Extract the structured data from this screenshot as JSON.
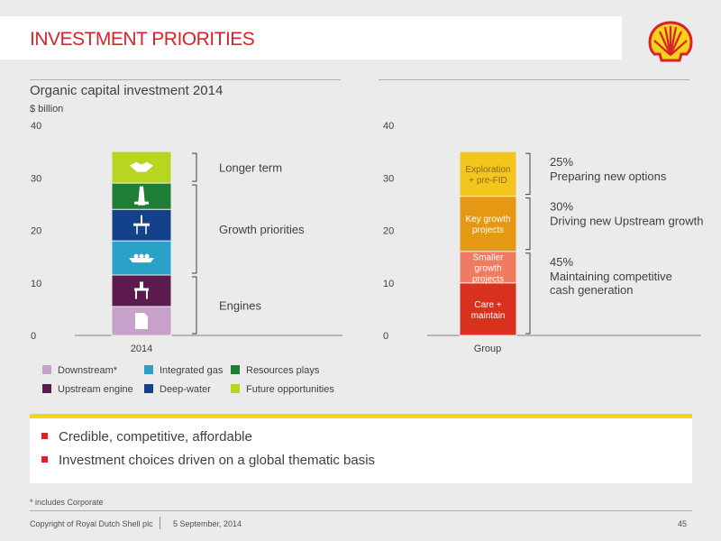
{
  "header": {
    "title": "INVESTMENT PRIORITIES",
    "logo": "shell-pecten-logo"
  },
  "chart_data": [
    {
      "type": "bar",
      "title": "Organic capital investment 2014",
      "ylabel": "$ billion",
      "ylim": [
        0,
        40
      ],
      "yticks": [
        "0",
        "10",
        "20",
        "30",
        "40"
      ],
      "categories": [
        "2014"
      ],
      "series": [
        {
          "name": "Downstream*",
          "values": [
            5.5
          ],
          "color": "#c7a1c9",
          "icon": "fuel-can-icon"
        },
        {
          "name": "Upstream engine",
          "values": [
            6
          ],
          "color": "#5c1a4f",
          "icon": "offshore-platform-icon"
        },
        {
          "name": "Integrated gas",
          "values": [
            6.5
          ],
          "color": "#2aa2c8",
          "icon": "lng-ship-icon"
        },
        {
          "name": "Deep-water",
          "values": [
            6
          ],
          "color": "#13418a",
          "icon": "deepwater-platform-icon"
        },
        {
          "name": "Resources plays",
          "values": [
            5
          ],
          "color": "#1e7e35",
          "icon": "drilling-rig-icon"
        },
        {
          "name": "Future opportunities",
          "values": [
            6
          ],
          "color": "#b8d51f",
          "icon": "handshake-icon"
        }
      ],
      "brackets": [
        {
          "label": "Longer term",
          "from": 29,
          "to": 35
        },
        {
          "label": "Growth priorities",
          "from": 11.5,
          "to": 29
        },
        {
          "label": "Engines",
          "from": 0,
          "to": 11.5
        }
      ]
    },
    {
      "type": "bar",
      "ylim": [
        0,
        40
      ],
      "yticks": [
        "0",
        "10",
        "20",
        "30",
        "40"
      ],
      "categories": [
        "Group"
      ],
      "series": [
        {
          "name": "Care + maintain",
          "values": [
            10
          ],
          "color": "#d8321f"
        },
        {
          "name": "Smaller growth projects",
          "values": [
            6
          ],
          "color": "#ef7b63"
        },
        {
          "name": "Key growth projects",
          "values": [
            10.5
          ],
          "color": "#e59814"
        },
        {
          "name": "Exploration + pre-FID",
          "values": [
            8.5
          ],
          "color": "#f2c51f"
        }
      ],
      "brackets": [
        {
          "pct": "45%",
          "label": "Maintaining competitive cash generation",
          "lines": [
            "Maintaining competitive",
            "cash generation"
          ],
          "from": 0,
          "to": 16
        },
        {
          "pct": "30%",
          "label": "Driving new Upstream growth",
          "lines": [
            "Driving new Upstream growth"
          ],
          "from": 16,
          "to": 26.5
        },
        {
          "pct": "25%",
          "label": "Preparing new options",
          "lines": [
            "Preparing new options"
          ],
          "from": 26.5,
          "to": 35
        }
      ]
    }
  ],
  "bar_labels": {
    "care": [
      "Care +",
      "maintain"
    ],
    "smaller": [
      "Smaller",
      "growth",
      "projects"
    ],
    "key": [
      "Key growth",
      "projects"
    ],
    "exploration": [
      "Exploration",
      "+ pre-FID"
    ]
  },
  "legend": [
    {
      "label": "Downstream*",
      "color": "#c7a1c9"
    },
    {
      "label": "Integrated gas",
      "color": "#2aa2c8"
    },
    {
      "label": "Resources plays",
      "color": "#1e7e35"
    },
    {
      "label": "Upstream engine",
      "color": "#5c1a4f"
    },
    {
      "label": "Deep-water",
      "color": "#13418a"
    },
    {
      "label": "Future opportunities",
      "color": "#b8d51f"
    }
  ],
  "bullets": [
    "Credible, competitive, affordable",
    "Investment choices driven on a global thematic basis"
  ],
  "footnote": "* includes Corporate",
  "footer": {
    "copyright": "Copyright of Royal Dutch Shell plc",
    "date": "5 September, 2014",
    "page": "45"
  },
  "colors": {
    "accent": "#d8232a",
    "highlight": "#f6d318"
  }
}
